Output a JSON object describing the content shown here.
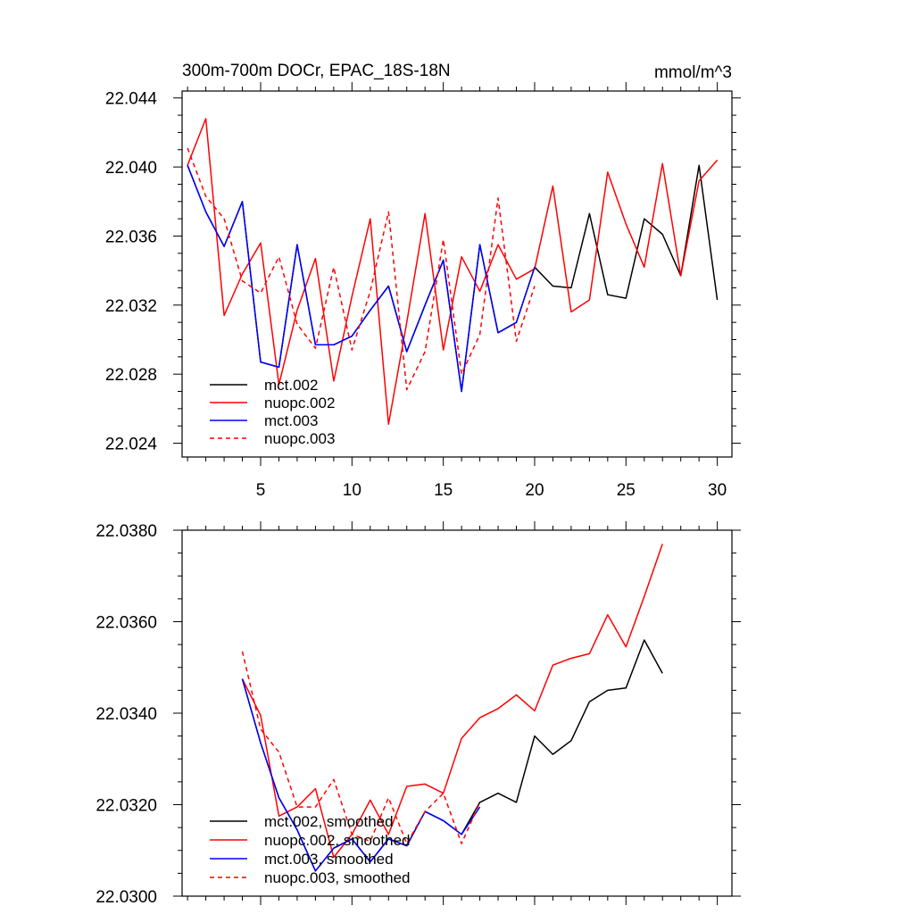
{
  "chart_data": [
    {
      "type": "line",
      "title": "300m-700m DOCr, EPAC_18S-18N",
      "units": "mmol/m^3",
      "xlim": [
        0.7,
        30.8
      ],
      "ylim": [
        22.0232,
        22.0444
      ],
      "xticks": [
        5,
        10,
        15,
        20,
        25,
        30
      ],
      "xtick_labels": [
        "5",
        "10",
        "15",
        "20",
        "25",
        "30"
      ],
      "yticks": [
        22.024,
        22.028,
        22.032,
        22.036,
        22.04,
        22.044
      ],
      "ytick_labels": [
        "22.024",
        "22.028",
        "22.032",
        "22.036",
        "22.040",
        "22.044"
      ],
      "legend": "bottom-left",
      "series": [
        {
          "name": "mct.002",
          "color": "#000000",
          "dash": "solid",
          "x": [
            1,
            2,
            3,
            4,
            5,
            6,
            7,
            8,
            9,
            10,
            11,
            12,
            13,
            14,
            15,
            16,
            17,
            18,
            19,
            20,
            21,
            22,
            23,
            24,
            25,
            26,
            27,
            28,
            29,
            30
          ],
          "values": [
            22.0401,
            22.0374,
            22.0354,
            22.038,
            22.0287,
            22.0284,
            22.0355,
            22.0297,
            22.0297,
            22.0302,
            22.0317,
            22.0331,
            22.0293,
            22.032,
            22.0346,
            22.027,
            22.0355,
            22.0304,
            22.031,
            22.0342,
            22.0331,
            22.033,
            22.0373,
            22.0326,
            22.0324,
            22.037,
            22.0361,
            22.0337,
            22.0401,
            22.0323
          ]
        },
        {
          "name": "nuopc.002",
          "color": "#ff0000",
          "dash": "solid",
          "x": [
            1,
            2,
            3,
            4,
            5,
            6,
            7,
            8,
            9,
            10,
            11,
            12,
            13,
            14,
            15,
            16,
            17,
            18,
            19,
            20,
            21,
            22,
            23,
            24,
            25,
            26,
            27,
            28,
            29,
            30
          ],
          "values": [
            22.0401,
            22.0428,
            22.0314,
            22.0338,
            22.0356,
            22.0274,
            22.0317,
            22.0347,
            22.0276,
            22.0325,
            22.037,
            22.0251,
            22.031,
            22.0373,
            22.0294,
            22.0348,
            22.0328,
            22.0355,
            22.0335,
            22.0341,
            22.0389,
            22.0316,
            22.0323,
            22.0397,
            22.0367,
            22.0342,
            22.0402,
            22.0337,
            22.0392,
            22.0404
          ]
        },
        {
          "name": "mct.003",
          "color": "#0000ff",
          "dash": "solid",
          "x": [
            1,
            2,
            3,
            4,
            5,
            6,
            7,
            8,
            9,
            10,
            11,
            12,
            13,
            14,
            15,
            16,
            17,
            18,
            19,
            20
          ],
          "values": [
            22.0401,
            22.0374,
            22.0354,
            22.038,
            22.0287,
            22.0284,
            22.0355,
            22.0297,
            22.0297,
            22.0302,
            22.0317,
            22.0331,
            22.0293,
            22.032,
            22.0346,
            22.027,
            22.0355,
            22.0304,
            22.031,
            22.0342
          ]
        },
        {
          "name": "nuopc.003",
          "color": "#ff0000",
          "dash": "dashed",
          "x": [
            1,
            2,
            3,
            4,
            5,
            6,
            7,
            8,
            9,
            10,
            11,
            12,
            13,
            14,
            15,
            16,
            17,
            18,
            19,
            20
          ],
          "values": [
            22.0411,
            22.0383,
            22.037,
            22.0334,
            22.0327,
            22.0348,
            22.0309,
            22.0295,
            22.0342,
            22.0294,
            22.0328,
            22.0374,
            22.0271,
            22.0293,
            22.0358,
            22.028,
            22.0303,
            22.0382,
            22.0299,
            22.0331
          ]
        }
      ]
    },
    {
      "type": "line",
      "title": "",
      "xlim": [
        0.7,
        30.8
      ],
      "ylim": [
        22.03,
        22.038
      ],
      "xticks": [
        5,
        10,
        15,
        20,
        25,
        30
      ],
      "xtick_labels": [
        "",
        "",
        "",
        "",
        "",
        ""
      ],
      "yticks": [
        22.03,
        22.032,
        22.034,
        22.036,
        22.038
      ],
      "ytick_labels": [
        "22.0300",
        "22.0320",
        "22.0340",
        "22.0360",
        "22.0380"
      ],
      "legend": "bottom-left",
      "series": [
        {
          "name": "mct.002, smoothed",
          "color": "#000000",
          "dash": "solid",
          "x": [
            4,
            5,
            6,
            7,
            8,
            9,
            10,
            11,
            12,
            13,
            14,
            15,
            16,
            17,
            18,
            19,
            20,
            21,
            22,
            23,
            24,
            25,
            26,
            27
          ],
          "values": [
            22.03475,
            22.03335,
            22.03215,
            22.03145,
            22.03055,
            22.03105,
            22.03125,
            22.03075,
            22.03125,
            22.0311,
            22.03185,
            22.03165,
            22.03135,
            22.03205,
            22.03225,
            22.03205,
            22.0335,
            22.0331,
            22.0334,
            22.03425,
            22.0345,
            22.03455,
            22.0356,
            22.03487
          ]
        },
        {
          "name": "nuopc.002, smoothed",
          "color": "#ff0000",
          "dash": "solid",
          "x": [
            4,
            5,
            6,
            7,
            8,
            9,
            10,
            11,
            12,
            13,
            14,
            15,
            16,
            17,
            18,
            19,
            20,
            21,
            22,
            23,
            24,
            25,
            26,
            27
          ],
          "values": [
            22.03475,
            22.03395,
            22.03175,
            22.03195,
            22.03235,
            22.03085,
            22.03135,
            22.0321,
            22.03135,
            22.0324,
            22.03245,
            22.03225,
            22.03345,
            22.0339,
            22.0341,
            22.0344,
            22.03405,
            22.03505,
            22.0352,
            22.0353,
            22.03615,
            22.03545,
            22.03655,
            22.0377
          ]
        },
        {
          "name": "mct.003, smoothed",
          "color": "#0000ff",
          "dash": "solid",
          "x": [
            4,
            5,
            6,
            7,
            8,
            9,
            10,
            11,
            12,
            13,
            14,
            15,
            16,
            17
          ],
          "values": [
            22.03475,
            22.03335,
            22.03215,
            22.03145,
            22.03055,
            22.03105,
            22.03125,
            22.03075,
            22.03125,
            22.0311,
            22.03185,
            22.03165,
            22.03135,
            22.03195
          ]
        },
        {
          "name": "nuopc.003, smoothed",
          "color": "#ff0000",
          "dash": "dashed",
          "x": [
            4,
            5,
            6,
            7,
            8,
            9,
            10,
            11,
            12,
            13,
            14,
            15,
            16,
            17
          ],
          "values": [
            22.03535,
            22.03365,
            22.03315,
            22.03195,
            22.03195,
            22.03255,
            22.03135,
            22.0312,
            22.03215,
            22.03115,
            22.03185,
            22.03225,
            22.03115,
            22.03205
          ]
        }
      ]
    }
  ]
}
